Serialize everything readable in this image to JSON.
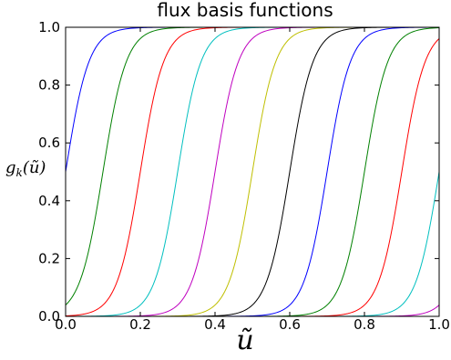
{
  "chart_data": {
    "type": "line",
    "title": "flux basis functions",
    "xlabel": "ũ",
    "ylabel_main": "g",
    "ylabel_sub": "k",
    "ylabel_arg": "(ũ)",
    "xlim": [
      0.0,
      1.0
    ],
    "ylim": [
      0.0,
      1.0
    ],
    "xticks": [
      0.0,
      0.2,
      0.4,
      0.6,
      0.8,
      1.0
    ],
    "xtick_labels": [
      "0.0",
      "0.2",
      "0.4",
      "0.6",
      "0.8",
      "1.0"
    ],
    "yticks": [
      0.0,
      0.2,
      0.4,
      0.6,
      0.8,
      1.0
    ],
    "ytick_labels": [
      "0.0",
      "0.2",
      "0.4",
      "0.6",
      "0.8",
      "1.0"
    ],
    "grid": false,
    "legend": false,
    "curve_shape": "sigmoid 0.5*(1+tanh(16*(x-center)))",
    "series": [
      {
        "center": 0.0,
        "color": "#0000ff"
      },
      {
        "center": 0.1,
        "color": "#008000"
      },
      {
        "center": 0.2,
        "color": "#ff0000"
      },
      {
        "center": 0.3,
        "color": "#00bfbf"
      },
      {
        "center": 0.4,
        "color": "#bf00bf"
      },
      {
        "center": 0.5,
        "color": "#bfbf00"
      },
      {
        "center": 0.6,
        "color": "#000000"
      },
      {
        "center": 0.7,
        "color": "#0000ff"
      },
      {
        "center": 0.8,
        "color": "#008000"
      },
      {
        "center": 0.9,
        "color": "#ff0000"
      },
      {
        "center": 1.0,
        "color": "#00bfbf"
      },
      {
        "center": 1.1,
        "color": "#bf00bf"
      }
    ]
  }
}
